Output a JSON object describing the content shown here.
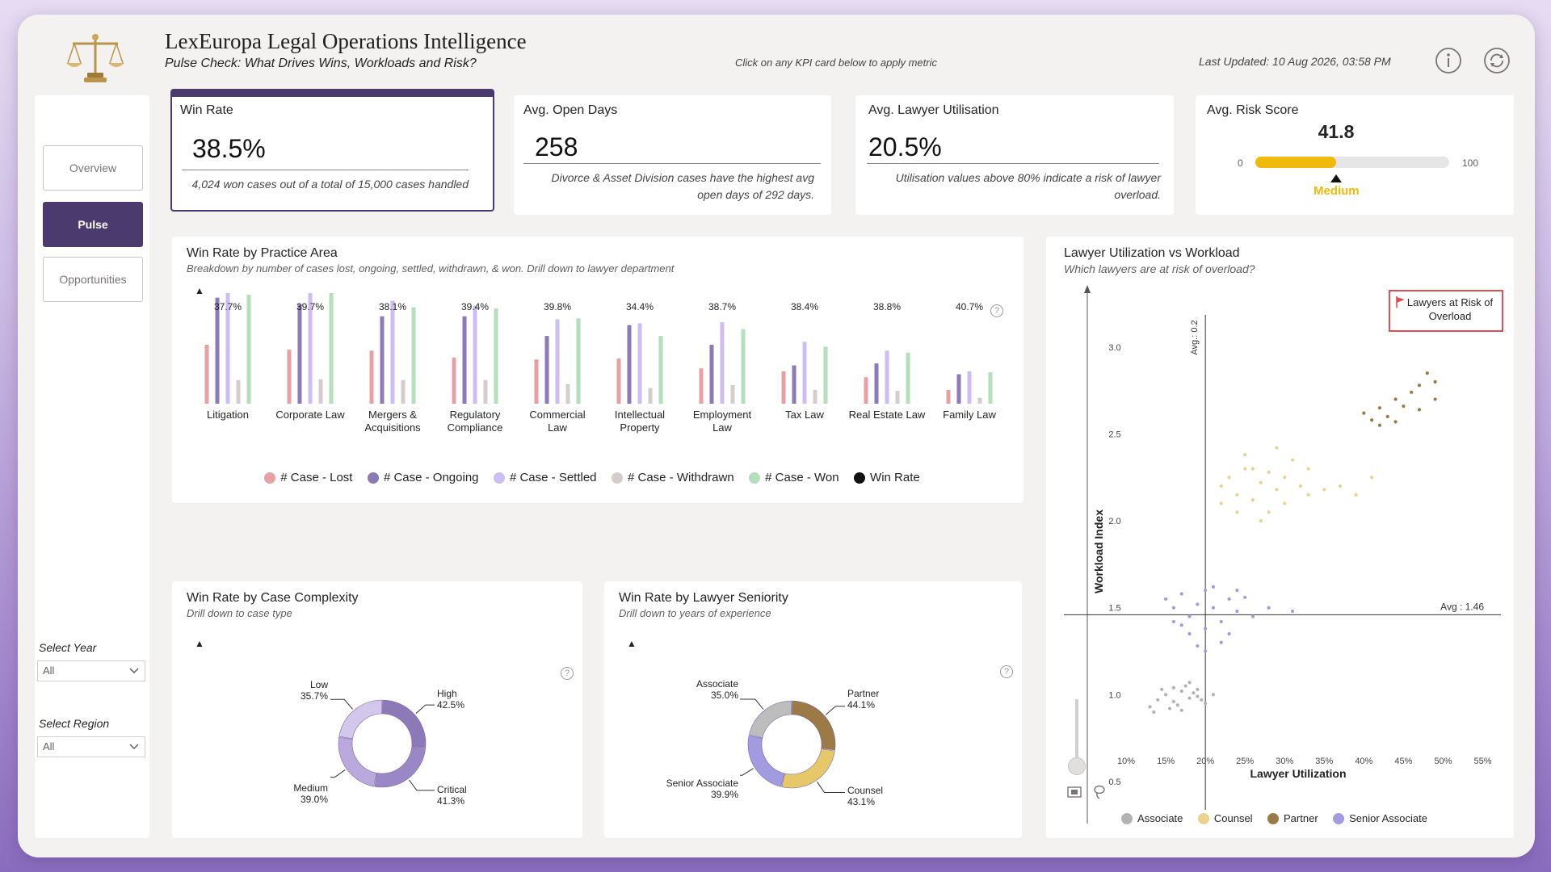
{
  "header": {
    "title": "LexEuropa Legal Operations Intelligence",
    "subtitle": "Pulse Check: What Drives Wins, Workloads and Risk?",
    "hint": "Click on any KPI card below to apply metric",
    "last_updated": "Last Updated: 10 Aug 2026, 03:58 PM"
  },
  "nav": {
    "items": [
      {
        "label": "Overview"
      },
      {
        "label": "Pulse"
      },
      {
        "label": "Opportunities"
      }
    ]
  },
  "filters": {
    "year": {
      "label": "Select Year",
      "value": "All"
    },
    "region": {
      "label": "Select Region",
      "value": "All"
    }
  },
  "kpis": {
    "win_rate": {
      "title": "Win Rate",
      "value": "38.5%",
      "note": "4,024 won cases out of a total of 15,000 cases handled"
    },
    "open_days": {
      "title": "Avg. Open Days",
      "value": "258",
      "note": "Divorce & Asset Division cases have the highest avg open days of 292 days."
    },
    "utilisation": {
      "title": "Avg. Lawyer Utilisation",
      "value": "20.5%",
      "note": "Utilisation values above 80% indicate a risk of lawyer overload."
    },
    "risk": {
      "title": "Avg. Risk Score",
      "value": "41.8",
      "min": "0",
      "max": "100",
      "level": "Medium",
      "fraction": 0.418
    }
  },
  "practice_chart": {
    "title": "Win Rate by Practice Area",
    "subtitle": "Breakdown by number of cases lost, ongoing, settled, withdrawn, & won. Drill down to lawyer department",
    "legend": [
      "# Case - Lost",
      "# Case - Ongoing",
      "# Case - Settled",
      "# Case - Withdrawn",
      "# Case - Won",
      "Win Rate"
    ]
  },
  "complexity_chart": {
    "title": "Win Rate by Case Complexity",
    "subtitle": "Drill down to case type"
  },
  "seniority_chart": {
    "title": "Win Rate by Lawyer Seniority",
    "subtitle": "Drill down to years of experience"
  },
  "scatter_chart": {
    "title": "Lawyer Utilization vs Workload",
    "subtitle": "Which lawyers are at risk of overload?",
    "risk_label": "Lawyers at Risk of Overload",
    "avg_x_label": "Avg.: 0.2",
    "avg_y_label": "Avg : 1.46",
    "xlabel": "Lawyer Utilization",
    "ylabel": "Workload Index",
    "legend": [
      "Associate",
      "Counsel",
      "Partner",
      "Senior Associate"
    ]
  },
  "colors": {
    "lost": "#e8a0a4",
    "ongoing": "#8b79b8",
    "settled": "#cdbdf4",
    "withdrawn": "#d6cccc",
    "won": "#b3dfbc",
    "associate": "#b3b3b3",
    "counsel": "#ead38c",
    "partner": "#9c7a45",
    "senior": "#a39be0",
    "accent": "#4b3a6e",
    "gauge": "#f0b90b"
  },
  "chart_data": [
    {
      "type": "bar",
      "categories": [
        "Litigation",
        "Corporate Law",
        "Mergers & Acquisitions",
        "Regulatory Compliance",
        "Commercial Law",
        "Intellectual Property",
        "Employment Law",
        "Tax Law",
        "Real Estate Law",
        "Family Law"
      ],
      "series": [
        {
          "name": "# Case - Lost",
          "values": [
            60,
            55,
            54,
            47,
            45,
            46,
            36,
            33,
            27,
            14
          ]
        },
        {
          "name": "# Case - Ongoing",
          "values": [
            108,
            101,
            89,
            89,
            69,
            80,
            60,
            39,
            41,
            30
          ]
        },
        {
          "name": "# Case - Settled",
          "values": [
            124,
            123,
            105,
            100,
            86,
            82,
            83,
            63,
            54,
            33
          ]
        },
        {
          "name": "# Case - Withdrawn",
          "values": [
            24,
            25,
            24,
            24,
            20,
            16,
            19,
            14,
            13,
            6
          ]
        },
        {
          "name": "# Case - Won",
          "values": [
            111,
            118,
            98,
            97,
            87,
            69,
            76,
            58,
            52,
            32
          ]
        },
        {
          "name": "Win Rate",
          "values": [
            "37.7%",
            "39.7%",
            "38.1%",
            "39.4%",
            "39.8%",
            "34.4%",
            "38.7%",
            "38.4%",
            "38.8%",
            "40.7%"
          ]
        }
      ]
    },
    {
      "type": "pie",
      "labels": [
        "High",
        "Critical",
        "Medium",
        "Low"
      ],
      "values": [
        42.5,
        41.3,
        39.0,
        35.7
      ],
      "display": [
        "42.5%",
        "41.3%",
        "39.0%",
        "35.7%"
      ]
    },
    {
      "type": "pie",
      "labels": [
        "Partner",
        "Counsel",
        "Senior Associate",
        "Associate"
      ],
      "values": [
        44.1,
        43.1,
        39.9,
        35.0
      ],
      "display": [
        "44.1%",
        "43.1%",
        "39.9%",
        "35.0%"
      ]
    },
    {
      "type": "scatter",
      "xlabel": "Lawyer Utilization",
      "ylabel": "Workload Index",
      "x_ticks": [
        "10%",
        "15%",
        "20%",
        "25%",
        "30%",
        "35%",
        "40%",
        "45%",
        "50%",
        "55%"
      ],
      "y_ticks": [
        "0.5",
        "1.0",
        "1.5",
        "2.0",
        "2.5",
        "3.0"
      ],
      "xlim": [
        0.05,
        0.575
      ],
      "ylim": [
        0.3,
        3.45
      ],
      "avg_x": 0.2,
      "avg_y": 1.46,
      "series": [
        {
          "name": "Associate",
          "points": [
            [
              0.13,
              0.93
            ],
            [
              0.14,
              0.97
            ],
            [
              0.15,
              1.0
            ],
            [
              0.16,
              0.96
            ],
            [
              0.17,
              1.02
            ],
            [
              0.18,
              0.98
            ],
            [
              0.19,
              0.99
            ],
            [
              0.175,
              1.05
            ],
            [
              0.155,
              0.92
            ],
            [
              0.165,
              0.94
            ],
            [
              0.185,
              1.01
            ],
            [
              0.195,
              0.97
            ],
            [
              0.145,
              1.03
            ],
            [
              0.2,
              0.95
            ],
            [
              0.21,
              1.0
            ],
            [
              0.135,
              0.9
            ],
            [
              0.17,
              0.91
            ],
            [
              0.18,
              1.07
            ],
            [
              0.16,
              1.04
            ],
            [
              0.19,
              1.03
            ]
          ]
        },
        {
          "name": "Counsel",
          "points": [
            [
              0.22,
              2.2
            ],
            [
              0.23,
              2.25
            ],
            [
              0.24,
              2.15
            ],
            [
              0.25,
              2.3
            ],
            [
              0.26,
              2.12
            ],
            [
              0.27,
              2.22
            ],
            [
              0.28,
              2.28
            ],
            [
              0.29,
              2.18
            ],
            [
              0.3,
              2.25
            ],
            [
              0.31,
              2.35
            ],
            [
              0.32,
              2.2
            ],
            [
              0.33,
              2.15
            ],
            [
              0.26,
              2.3
            ],
            [
              0.28,
              2.05
            ],
            [
              0.3,
              2.1
            ],
            [
              0.24,
              2.05
            ],
            [
              0.35,
              2.18
            ],
            [
              0.37,
              2.2
            ],
            [
              0.41,
              2.25
            ],
            [
              0.22,
              2.1
            ],
            [
              0.25,
              2.38
            ],
            [
              0.29,
              2.42
            ],
            [
              0.33,
              2.3
            ],
            [
              0.27,
              2.0
            ],
            [
              0.39,
              2.15
            ]
          ]
        },
        {
          "name": "Partner",
          "points": [
            [
              0.4,
              2.62
            ],
            [
              0.41,
              2.58
            ],
            [
              0.42,
              2.65
            ],
            [
              0.43,
              2.6
            ],
            [
              0.44,
              2.7
            ],
            [
              0.45,
              2.66
            ],
            [
              0.46,
              2.74
            ],
            [
              0.47,
              2.78
            ],
            [
              0.48,
              2.85
            ],
            [
              0.49,
              2.8
            ],
            [
              0.42,
              2.55
            ],
            [
              0.44,
              2.57
            ],
            [
              0.47,
              2.64
            ],
            [
              0.49,
              2.7
            ]
          ]
        },
        {
          "name": "Senior Associate",
          "points": [
            [
              0.15,
              1.55
            ],
            [
              0.16,
              1.5
            ],
            [
              0.17,
              1.58
            ],
            [
              0.18,
              1.45
            ],
            [
              0.19,
              1.52
            ],
            [
              0.2,
              1.6
            ],
            [
              0.21,
              1.5
            ],
            [
              0.22,
              1.42
            ],
            [
              0.23,
              1.55
            ],
            [
              0.24,
              1.48
            ],
            [
              0.25,
              1.56
            ],
            [
              0.18,
              1.35
            ],
            [
              0.2,
              1.38
            ],
            [
              0.22,
              1.3
            ],
            [
              0.17,
              1.4
            ],
            [
              0.19,
              1.28
            ],
            [
              0.21,
              1.62
            ],
            [
              0.24,
              1.6
            ],
            [
              0.26,
              1.45
            ],
            [
              0.28,
              1.5
            ],
            [
              0.31,
              1.48
            ],
            [
              0.16,
              1.42
            ],
            [
              0.23,
              1.35
            ],
            [
              0.2,
              1.25
            ]
          ]
        }
      ]
    }
  ]
}
